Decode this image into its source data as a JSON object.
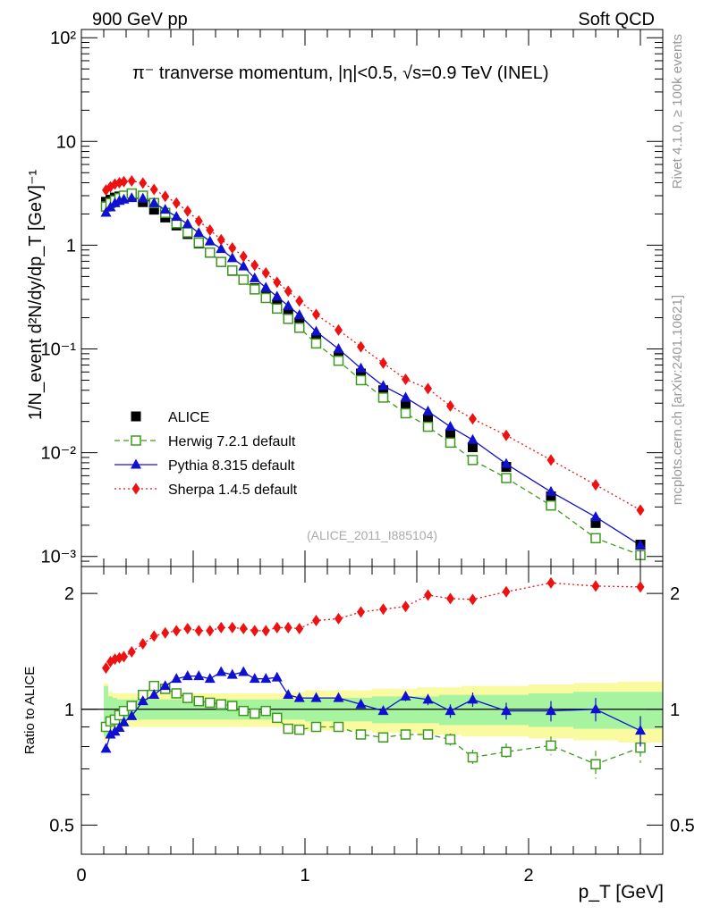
{
  "header": {
    "left": "900 GeV pp",
    "right": "Soft QCD"
  },
  "side_text": {
    "rivet": "Rivet 4.1.0, ≥ 100k events",
    "mcplots": "mcplots.cern.ch [arXiv:2401.10621]"
  },
  "colors": {
    "data": "#000000",
    "herwig": "#3c9a1e",
    "pythia": "#1010d0",
    "sherpa": "#ee1111",
    "band_inner": "#a6f4a0",
    "band_outer": "#fafaa0"
  },
  "chart_data": [
    {
      "type": "scatter",
      "panel": "main",
      "title": "π⁻ tranverse momentum, |η|<0.5, √s=0.9 TeV (INEL)",
      "ylabel": "1/N_event d²N/dy/dp_T [GeV]⁻¹",
      "yscale": "log",
      "ylim": [
        0.0008,
        120
      ],
      "xlim": [
        0,
        2.6
      ],
      "yticks": [
        {
          "value": 0.001,
          "label": "10⁻³"
        },
        {
          "value": 0.01,
          "label": "10⁻²"
        },
        {
          "value": 0.1,
          "label": "10⁻¹"
        },
        {
          "value": 1,
          "label": "1"
        },
        {
          "value": 10,
          "label": "10"
        },
        {
          "value": 100,
          "label": "10²"
        }
      ],
      "annotation": "(ALICE_2011_I885104)",
      "legend_position": "bottom-left",
      "x": [
        0.11,
        0.13,
        0.15,
        0.17,
        0.19,
        0.225,
        0.275,
        0.325,
        0.375,
        0.425,
        0.475,
        0.525,
        0.575,
        0.625,
        0.675,
        0.725,
        0.775,
        0.825,
        0.875,
        0.925,
        0.975,
        1.05,
        1.15,
        1.25,
        1.35,
        1.45,
        1.55,
        1.65,
        1.75,
        1.9,
        2.1,
        2.3,
        2.5
      ],
      "series": [
        {
          "name": "ALICE",
          "key": "data",
          "marker": "square-filled",
          "values": [
            2.62,
            2.75,
            2.88,
            2.95,
            3.0,
            2.95,
            2.6,
            2.2,
            1.85,
            1.55,
            1.28,
            1.04,
            0.845,
            0.69,
            0.565,
            0.465,
            0.385,
            0.32,
            0.265,
            0.22,
            0.18,
            0.127,
            0.085,
            0.058,
            0.04,
            0.028,
            0.021,
            0.015,
            0.0113,
            0.0073,
            0.0038,
            0.0021,
            0.0013
          ]
        },
        {
          "name": "Herwig 7.2.1 default",
          "key": "herwig",
          "marker": "square-open",
          "values": [
            2.36,
            2.55,
            2.7,
            2.85,
            3.0,
            3.15,
            3.0,
            2.55,
            2.05,
            1.63,
            1.33,
            1.06,
            0.85,
            0.69,
            0.57,
            0.465,
            0.375,
            0.31,
            0.245,
            0.195,
            0.16,
            0.113,
            0.077,
            0.05,
            0.034,
            0.024,
            0.0178,
            0.0125,
            0.0085,
            0.0057,
            0.0031,
            0.0015,
            0.00103
          ]
        },
        {
          "name": "Pythia 8.315 default",
          "key": "pythia",
          "marker": "triangle",
          "values": [
            2.06,
            2.32,
            2.54,
            2.68,
            2.76,
            2.85,
            2.82,
            2.55,
            2.2,
            1.88,
            1.6,
            1.31,
            1.09,
            0.92,
            0.75,
            0.625,
            0.48,
            0.39,
            0.32,
            0.26,
            0.212,
            0.147,
            0.1,
            0.065,
            0.044,
            0.034,
            0.025,
            0.0178,
            0.0133,
            0.0078,
            0.0042,
            0.0024,
            0.00128
          ]
        },
        {
          "name": "Sherpa 1.4.5 default",
          "key": "sherpa",
          "marker": "diamond",
          "values": [
            3.4,
            3.65,
            3.88,
            4.0,
            4.1,
            4.16,
            3.97,
            3.45,
            2.96,
            2.55,
            2.13,
            1.71,
            1.4,
            1.13,
            0.94,
            0.78,
            0.64,
            0.54,
            0.44,
            0.36,
            0.29,
            0.215,
            0.152,
            0.105,
            0.073,
            0.051,
            0.0415,
            0.0282,
            0.0212,
            0.0147,
            0.0085,
            0.0049,
            0.0028
          ]
        }
      ]
    },
    {
      "type": "scatter",
      "panel": "ratio",
      "ylabel": "Ratio to ALICE",
      "yscale": "log",
      "ylim": [
        0.42,
        2.35
      ],
      "xlim": [
        0,
        2.6
      ],
      "xlabel": "p_T [GeV]",
      "yticks": [
        {
          "value": 0.5,
          "label": "0.5"
        },
        {
          "value": 1,
          "label": "1"
        },
        {
          "value": 2,
          "label": "2"
        }
      ],
      "xticks": [
        {
          "value": 0,
          "label": "0"
        },
        {
          "value": 1,
          "label": "1"
        },
        {
          "value": 2,
          "label": "2"
        }
      ],
      "x": [
        0.11,
        0.13,
        0.15,
        0.17,
        0.19,
        0.225,
        0.275,
        0.325,
        0.375,
        0.425,
        0.475,
        0.525,
        0.575,
        0.625,
        0.675,
        0.725,
        0.775,
        0.825,
        0.875,
        0.925,
        0.975,
        1.05,
        1.15,
        1.25,
        1.35,
        1.45,
        1.55,
        1.65,
        1.75,
        1.9,
        2.1,
        2.3,
        2.5
      ],
      "band_edges": [
        0.1,
        0.12,
        0.14,
        0.16,
        0.18,
        0.2,
        0.25,
        0.3,
        0.35,
        0.4,
        0.45,
        0.5,
        0.55,
        0.6,
        0.65,
        0.7,
        0.75,
        0.8,
        0.85,
        0.9,
        0.95,
        1.0,
        1.1,
        1.2,
        1.3,
        1.4,
        1.5,
        1.6,
        1.7,
        1.8,
        2.0,
        2.2,
        2.4,
        2.6
      ],
      "band_stat_err": [
        0.15,
        0.08,
        0.07,
        0.06,
        0.06,
        0.06,
        0.06,
        0.06,
        0.06,
        0.06,
        0.06,
        0.06,
        0.06,
        0.06,
        0.06,
        0.06,
        0.06,
        0.06,
        0.06,
        0.06,
        0.06,
        0.07,
        0.07,
        0.07,
        0.08,
        0.08,
        0.08,
        0.09,
        0.09,
        0.09,
        0.1,
        0.11,
        0.11
      ],
      "band_total_err": [
        0.17,
        0.11,
        0.1,
        0.1,
        0.1,
        0.1,
        0.1,
        0.1,
        0.1,
        0.1,
        0.1,
        0.1,
        0.1,
        0.1,
        0.1,
        0.1,
        0.1,
        0.1,
        0.1,
        0.1,
        0.11,
        0.12,
        0.12,
        0.12,
        0.13,
        0.13,
        0.14,
        0.14,
        0.15,
        0.15,
        0.16,
        0.17,
        0.18
      ],
      "series": [
        {
          "name": "Herwig 7.2.1 default",
          "key": "herwig",
          "marker": "square-open",
          "values": [
            0.9,
            0.93,
            0.94,
            0.965,
            0.99,
            1.02,
            1.09,
            1.15,
            1.13,
            1.1,
            1.07,
            1.05,
            1.04,
            1.03,
            1.02,
            0.99,
            0.975,
            0.99,
            0.95,
            0.89,
            0.885,
            0.9,
            0.9,
            0.86,
            0.845,
            0.86,
            0.86,
            0.835,
            0.75,
            0.775,
            0.805,
            0.72,
            0.795
          ],
          "errors": [
            0.01,
            0.01,
            0.01,
            0.01,
            0.01,
            0.01,
            0.01,
            0.01,
            0.01,
            0.01,
            0.01,
            0.01,
            0.01,
            0.01,
            0.01,
            0.01,
            0.01,
            0.01,
            0.01,
            0.01,
            0.01,
            0.015,
            0.015,
            0.015,
            0.02,
            0.02,
            0.02,
            0.03,
            0.035,
            0.04,
            0.045,
            0.06,
            0.07
          ]
        },
        {
          "name": "Pythia 8.315 default",
          "key": "pythia",
          "marker": "triangle",
          "values": [
            0.79,
            0.86,
            0.875,
            0.895,
            0.925,
            0.96,
            1.05,
            1.09,
            1.15,
            1.2,
            1.22,
            1.22,
            1.2,
            1.25,
            1.23,
            1.25,
            1.2,
            1.2,
            1.21,
            1.09,
            1.07,
            1.07,
            1.07,
            1.03,
            0.99,
            1.08,
            1.06,
            0.99,
            1.06,
            0.99,
            0.99,
            1.0,
            0.88
          ],
          "errors": [
            0.01,
            0.01,
            0.01,
            0.01,
            0.01,
            0.01,
            0.01,
            0.01,
            0.01,
            0.01,
            0.01,
            0.01,
            0.01,
            0.01,
            0.01,
            0.01,
            0.01,
            0.01,
            0.01,
            0.01,
            0.01,
            0.015,
            0.015,
            0.02,
            0.02,
            0.03,
            0.035,
            0.04,
            0.045,
            0.05,
            0.06,
            0.07,
            0.08
          ]
        },
        {
          "name": "Sherpa 1.4.5 default",
          "key": "sherpa",
          "marker": "diamond",
          "values": [
            1.28,
            1.33,
            1.35,
            1.36,
            1.37,
            1.41,
            1.48,
            1.55,
            1.58,
            1.6,
            1.62,
            1.6,
            1.6,
            1.63,
            1.63,
            1.62,
            1.6,
            1.6,
            1.63,
            1.63,
            1.62,
            1.7,
            1.72,
            1.79,
            1.82,
            1.85,
            1.98,
            1.94,
            1.93,
            2.02,
            2.13,
            2.09,
            2.08
          ],
          "errors": [
            0.01,
            0.01,
            0.01,
            0.01,
            0.01,
            0.01,
            0.01,
            0.01,
            0.01,
            0.01,
            0.01,
            0.01,
            0.01,
            0.01,
            0.01,
            0.01,
            0.01,
            0.01,
            0.01,
            0.01,
            0.01,
            0.015,
            0.02,
            0.02,
            0.025,
            0.03,
            0.04,
            0.045,
            0.05,
            0.05,
            0.06,
            0.07,
            0.08
          ]
        }
      ]
    }
  ]
}
